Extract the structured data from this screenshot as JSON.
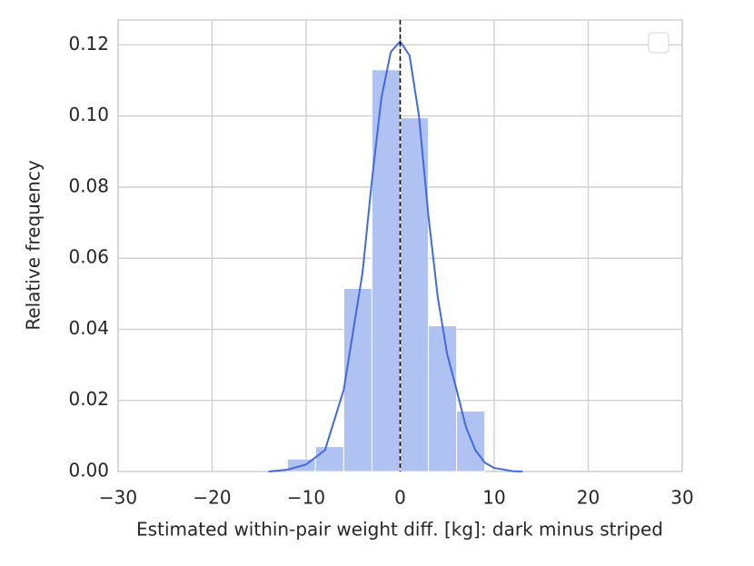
{
  "chart_data": {
    "type": "histogram",
    "xlabel": "Estimated within-pair weight diff. [kg]: dark minus striped",
    "ylabel": "Relative frequency",
    "bins": [
      -12,
      -9,
      -6,
      -3,
      0,
      3,
      6,
      9
    ],
    "values": [
      0.0035,
      0.007,
      0.0515,
      0.113,
      0.0995,
      0.041,
      0.017
    ],
    "color": "#b0c2f2",
    "kde": {
      "x": [
        -14,
        -12,
        -10,
        -8,
        -6,
        -4,
        -3,
        -2,
        -1,
        0,
        1,
        2,
        3,
        4,
        5,
        6,
        7,
        8,
        9,
        10,
        12,
        13
      ],
      "values": [
        0,
        0.0005,
        0.002,
        0.006,
        0.023,
        0.056,
        0.082,
        0.105,
        0.118,
        0.121,
        0.117,
        0.1,
        0.072,
        0.049,
        0.033,
        0.023,
        0.0125,
        0.006,
        0.0025,
        0.001,
        0.0001,
        0
      ],
      "color": "#4169e1"
    },
    "reference_line": 0,
    "xlim": [
      -30,
      30
    ],
    "xticks": [
      {
        "value": -30,
        "label": "−30"
      },
      {
        "value": -20,
        "label": "−20"
      },
      {
        "value": -10,
        "label": "−10"
      },
      0,
      10,
      20,
      30
    ],
    "ylim": [
      0,
      0.127
    ],
    "yticks": [
      {
        "value": 0,
        "label": "0.00"
      },
      {
        "value": 0.02,
        "label": "0.02"
      },
      {
        "value": 0.04,
        "label": "0.04"
      },
      {
        "value": 0.06,
        "label": "0.06"
      },
      {
        "value": 0.08,
        "label": "0.08"
      },
      {
        "value": 0.1,
        "label": "0.10"
      },
      {
        "value": 0.12,
        "label": "0.12"
      }
    ],
    "grid": true,
    "legend": "upper right"
  }
}
